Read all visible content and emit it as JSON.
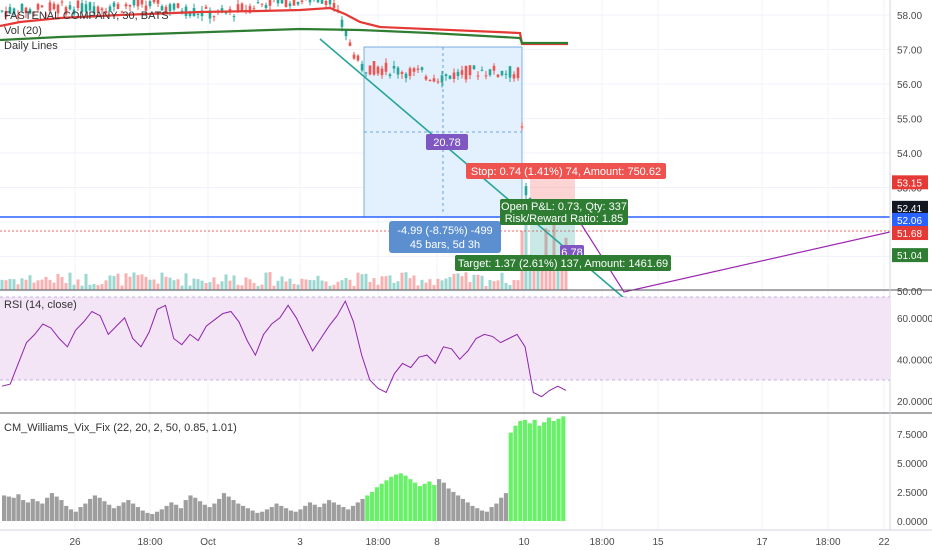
{
  "header": {
    "title": "FASTENAL COMPANY, 30, BATS",
    "vol_label": "Vol (20)",
    "daily_lines_label": "Daily Lines"
  },
  "rsi_label": "RSI (14, close)",
  "vix_label": "CM_Williams_Vix_Fix (22, 20, 2, 50, 0.85, 1.01)",
  "colors": {
    "up": "#26a69a",
    "down": "#ef5350",
    "red_line": "#e53935",
    "green_line": "#2e7d32",
    "blue_line": "#2962ff",
    "purple": "#9c27b0",
    "vix_gray": "#9e9e9e",
    "vix_green": "#69f069",
    "rsi_band": "#f3e5f5"
  },
  "chart_data": [
    {
      "type": "candlestick",
      "title": "FASTENAL COMPANY, 30, BATS",
      "y_ticks": [
        "58.00",
        "57.00",
        "56.00",
        "55.00",
        "54.00",
        "53.00",
        "52.00",
        "51.00",
        "50.00"
      ],
      "x_ticks": [
        "26",
        "18:00",
        "Oct",
        "3",
        "18:00",
        "8",
        "10",
        "18:00",
        "15",
        "17",
        "18:00",
        "22"
      ],
      "price_badges": [
        {
          "value": "53.15",
          "color": "#e53935"
        },
        {
          "value": "52.41",
          "color": "#131722"
        },
        {
          "value": "52.06",
          "color": "#2962ff"
        },
        {
          "value": "51.68",
          "color": "#e53935"
        },
        {
          "value": "51.04",
          "color": "#2e7d32"
        }
      ],
      "horizontal_line": 52.06,
      "measure_box": {
        "label_top": "20.78",
        "line1": "-4.99 (-8.75%) -499",
        "line2": "45 bars, 5d 3h"
      },
      "position": {
        "stop_label": "Stop: 0.74 (1.41%) 74, Amount: 750.62",
        "open_label": "Open P&L: 0.73, Qty: 337",
        "rr_label": "Risk/Reward Ratio: 1.85",
        "target_label": "Target: 1.37 (2.61%) 137, Amount: 1461.69",
        "small_tag": "6.78"
      }
    },
    {
      "type": "line",
      "title": "RSI (14, close)",
      "y_ticks": [
        "60.0000",
        "40.0000",
        "20.0000"
      ],
      "band": [
        30,
        70
      ],
      "values": [
        27,
        28,
        38,
        48,
        52,
        57,
        55,
        50,
        46,
        54,
        58,
        63,
        61,
        52,
        56,
        60,
        50,
        46,
        53,
        64,
        66,
        50,
        47,
        52,
        49,
        56,
        59,
        62,
        63,
        58,
        49,
        42,
        52,
        57,
        60,
        66,
        60,
        52,
        44,
        50,
        56,
        61,
        68,
        58,
        42,
        30,
        26,
        24,
        33,
        38,
        36,
        41,
        42,
        38,
        46,
        45,
        40,
        44,
        50,
        52,
        51,
        48,
        50,
        52,
        46,
        24,
        22,
        25,
        27,
        25
      ]
    },
    {
      "type": "bar",
      "title": "CM_Williams_Vix_Fix (22, 20, 2, 50, 0.85, 1.01)",
      "y_ticks": [
        "7.5000",
        "5.0000",
        "2.5000",
        "0.0000"
      ],
      "ylim": [
        0,
        9
      ],
      "values": [
        2.2,
        2.1,
        2.0,
        2.3,
        1.8,
        1.6,
        1.9,
        1.7,
        1.5,
        2.0,
        2.4,
        2.1,
        1.8,
        1.3,
        1.0,
        0.8,
        1.2,
        1.5,
        1.9,
        2.2,
        2.0,
        1.7,
        1.4,
        1.1,
        1.3,
        1.6,
        1.8,
        1.5,
        1.2,
        0.9,
        0.7,
        0.6,
        0.8,
        1.0,
        1.3,
        1.6,
        1.4,
        1.1,
        1.8,
        2.2,
        2.0,
        1.7,
        1.4,
        1.2,
        1.5,
        1.9,
        2.4,
        2.1,
        1.8,
        1.5,
        1.3,
        1.1,
        0.9,
        0.7,
        0.8,
        1.0,
        1.2,
        1.5,
        1.3,
        1.1,
        0.9,
        0.8,
        1.0,
        1.3,
        1.6,
        1.4,
        1.2,
        1.5,
        1.8,
        1.6,
        1.4,
        1.2,
        1.0,
        1.3,
        1.6,
        1.9,
        2.2,
        2.5,
        2.9,
        3.2,
        3.5,
        3.8,
        4.0,
        4.1,
        3.9,
        3.6,
        3.3,
        3.0,
        3.2,
        3.4,
        3.1,
        3.6,
        3.3,
        2.8,
        2.5,
        2.2,
        1.9,
        1.6,
        1.3,
        1.1,
        0.9,
        0.8,
        1.2,
        1.5,
        2.0,
        2.4,
        7.6,
        8.2,
        8.6,
        8.7,
        8.4,
        8.7,
        8.2,
        8.5,
        8.9,
        8.6,
        8.8,
        9.0
      ]
    }
  ]
}
